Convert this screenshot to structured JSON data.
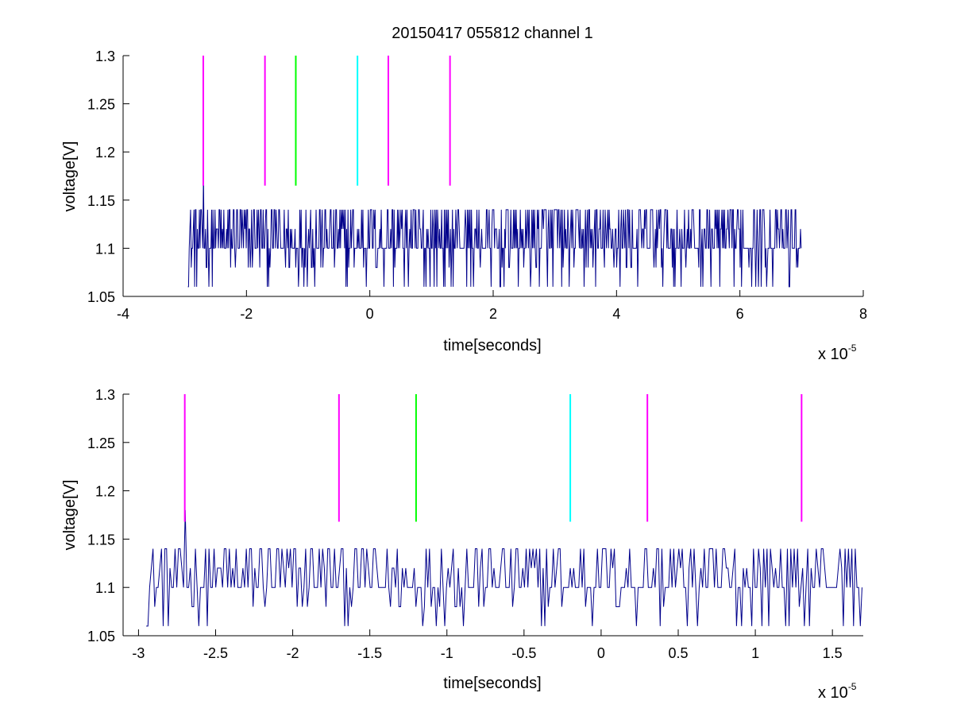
{
  "chart_data": [
    {
      "type": "line",
      "title": "20150417 055812 channel 1",
      "xlabel": "time[seconds]",
      "ylabel": "voltage[V]",
      "x_multiplier_base": "x 10",
      "x_multiplier_exp": "-5",
      "xlim": [
        -4,
        8
      ],
      "ylim": [
        1.05,
        1.3
      ],
      "xticks": [
        "-4",
        "-2",
        "0",
        "2",
        "4",
        "6",
        "8"
      ],
      "xtick_values": [
        -4,
        -2,
        0,
        2,
        4,
        6,
        8
      ],
      "yticks": [
        "1.05",
        "1.1",
        "1.15",
        "1.2",
        "1.25",
        "1.3"
      ],
      "ytick_values": [
        1.05,
        1.1,
        1.15,
        1.2,
        1.25,
        1.3
      ],
      "signal": {
        "x_start": -2.95,
        "x_end": 7.0,
        "baseline": 1.1,
        "levels": [
          1.06,
          1.08,
          1.1,
          1.12,
          1.14
        ],
        "peak": {
          "x": -2.7,
          "y": 1.18
        },
        "color": "#00008b"
      },
      "markers": [
        {
          "x": -2.7,
          "color": "#ff00ff",
          "y_from": 1.165,
          "y_to": 1.3
        },
        {
          "x": -1.7,
          "color": "#ff00ff",
          "y_from": 1.165,
          "y_to": 1.3
        },
        {
          "x": -1.2,
          "color": "#00ff00",
          "y_from": 1.165,
          "y_to": 1.3
        },
        {
          "x": -0.2,
          "color": "#00ffff",
          "y_from": 1.165,
          "y_to": 1.3
        },
        {
          "x": 0.3,
          "color": "#ff00ff",
          "y_from": 1.165,
          "y_to": 1.3
        },
        {
          "x": 1.3,
          "color": "#ff00ff",
          "y_from": 1.165,
          "y_to": 1.3
        }
      ],
      "grid": false,
      "legend": "none"
    },
    {
      "type": "line",
      "title": "",
      "xlabel": "time[seconds]",
      "ylabel": "voltage[V]",
      "x_multiplier_base": "x 10",
      "x_multiplier_exp": "-5",
      "xlim": [
        -3.1,
        1.7
      ],
      "ylim": [
        1.05,
        1.3
      ],
      "xticks": [
        "-3",
        "-2.5",
        "-2",
        "-1.5",
        "-1",
        "-0.5",
        "0",
        "0.5",
        "1",
        "1.5"
      ],
      "xtick_values": [
        -3,
        -2.5,
        -2,
        -1.5,
        -1,
        -0.5,
        0,
        0.5,
        1,
        1.5
      ],
      "yticks": [
        "1.05",
        "1.1",
        "1.15",
        "1.2",
        "1.25",
        "1.3"
      ],
      "ytick_values": [
        1.05,
        1.1,
        1.15,
        1.2,
        1.25,
        1.3
      ],
      "signal": {
        "x_start": -2.95,
        "x_end": 1.7,
        "baseline": 1.1,
        "levels": [
          1.06,
          1.08,
          1.1,
          1.12,
          1.14
        ],
        "peak": {
          "x": -2.7,
          "y": 1.18
        },
        "color": "#00008b"
      },
      "markers": [
        {
          "x": -2.7,
          "color": "#ff00ff",
          "y_from": 1.168,
          "y_to": 1.3
        },
        {
          "x": -1.7,
          "color": "#ff00ff",
          "y_from": 1.168,
          "y_to": 1.3
        },
        {
          "x": -1.2,
          "color": "#00ff00",
          "y_from": 1.168,
          "y_to": 1.3
        },
        {
          "x": -0.2,
          "color": "#00ffff",
          "y_from": 1.168,
          "y_to": 1.3
        },
        {
          "x": 0.3,
          "color": "#ff00ff",
          "y_from": 1.168,
          "y_to": 1.3
        },
        {
          "x": 1.3,
          "color": "#ff00ff",
          "y_from": 1.168,
          "y_to": 1.3
        }
      ],
      "grid": false,
      "legend": "none"
    }
  ]
}
